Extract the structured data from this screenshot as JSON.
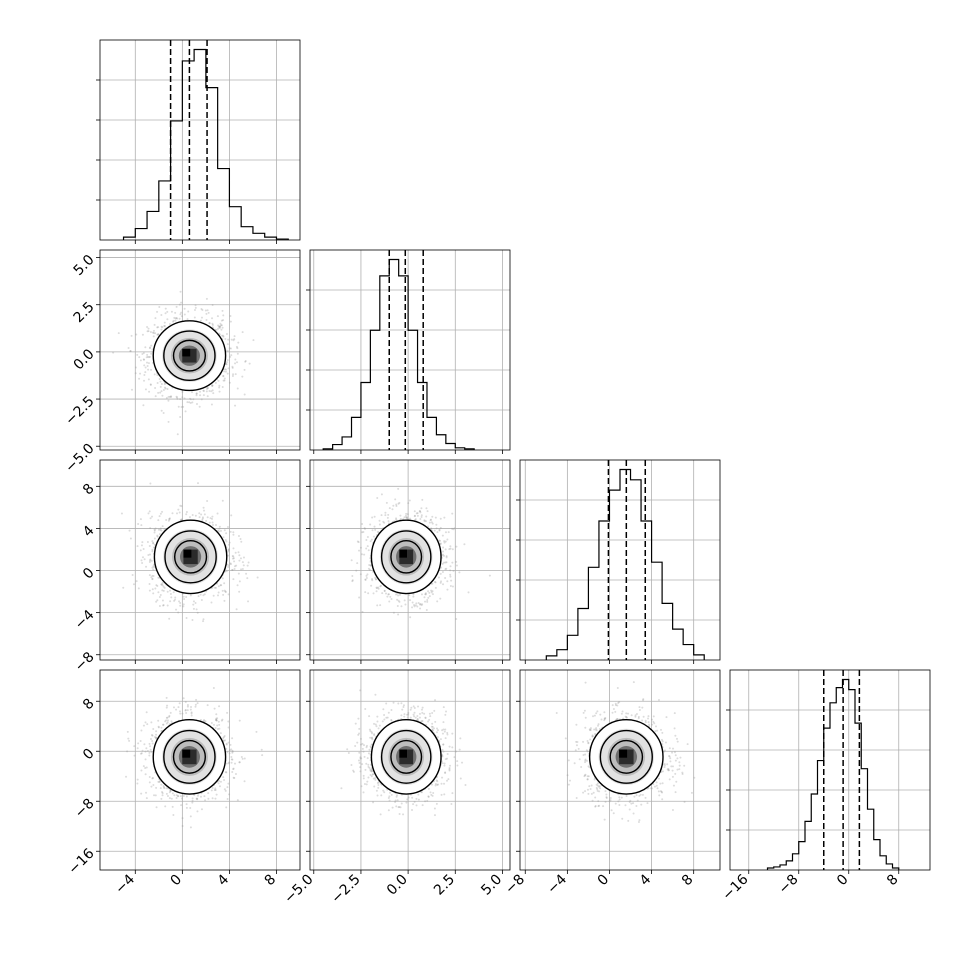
{
  "chart_data": {
    "type": "corner",
    "title": "",
    "dimensions": [
      {
        "label": "",
        "lim": [
          -7,
          10
        ],
        "ticks": [
          -4,
          0,
          4,
          8
        ],
        "tick_labels": [
          "−4",
          "0",
          "4",
          "8"
        ],
        "histogram": {
          "bin_edges": [
            -5,
            -4,
            -3,
            -2,
            -1,
            0,
            1,
            2,
            3,
            4,
            5,
            6,
            7,
            8,
            9
          ],
          "counts": [
            3,
            12,
            30,
            62,
            125,
            188,
            200,
            160,
            75,
            35,
            14,
            7,
            3,
            1
          ]
        },
        "quantiles": [
          -1.0,
          0.6,
          2.1
        ]
      },
      {
        "label": "",
        "lim": [
          -5.2,
          5.4
        ],
        "ticks": [
          -5.0,
          -2.5,
          0.0,
          2.5,
          5.0
        ],
        "tick_labels": [
          "−5.0",
          "−2.5",
          "0.0",
          "2.5",
          "5.0"
        ],
        "histogram": {
          "bin_edges": [
            -4.5,
            -4.0,
            -3.5,
            -3.0,
            -2.5,
            -2.0,
            -1.5,
            -1.0,
            -0.5,
            0.0,
            0.5,
            1.0,
            1.5,
            2.0,
            2.5,
            3.0,
            3.5
          ],
          "counts": [
            1,
            5,
            12,
            30,
            62,
            110,
            160,
            175,
            160,
            110,
            62,
            30,
            14,
            6,
            2,
            1
          ]
        },
        "quantiles": [
          -1.0,
          -0.15,
          0.8
        ]
      },
      {
        "label": "",
        "lim": [
          -8.5,
          10.5
        ],
        "ticks": [
          -8,
          -4,
          0,
          4,
          8
        ],
        "tick_labels": [
          "−8",
          "−4",
          "0",
          "4",
          "8"
        ],
        "histogram": {
          "bin_edges": [
            -6,
            -5,
            -4,
            -3,
            -2,
            -1,
            0,
            1,
            2,
            3,
            4,
            5,
            6,
            7,
            8,
            9
          ],
          "counts": [
            4,
            10,
            24,
            50,
            90,
            135,
            165,
            185,
            175,
            135,
            95,
            55,
            30,
            15,
            5
          ]
        },
        "quantiles": [
          -0.1,
          1.6,
          3.4
        ]
      },
      {
        "label": "",
        "lim": [
          -19,
          13
        ],
        "ticks": [
          -16,
          -8,
          0,
          8
        ],
        "tick_labels": [
          "−16",
          "−8",
          "0",
          "8"
        ],
        "histogram": {
          "bin_edges": [
            -13,
            -12,
            -11,
            -10,
            -9,
            -8,
            -7,
            -6,
            -5,
            -4,
            -3,
            -2,
            -1,
            0,
            1,
            2,
            3,
            4,
            5,
            6,
            7,
            8
          ],
          "counts": [
            2,
            3,
            5,
            9,
            16,
            28,
            48,
            75,
            108,
            140,
            165,
            180,
            188,
            178,
            145,
            100,
            60,
            30,
            14,
            6,
            2
          ]
        },
        "quantiles": [
          -4.0,
          -0.9,
          1.7
        ]
      }
    ],
    "pairs": [
      {
        "row": 1,
        "col": 0,
        "center": [
          0.6,
          -0.2
        ],
        "sd": [
          1.5,
          0.9
        ]
      },
      {
        "row": 2,
        "col": 0,
        "center": [
          0.7,
          1.3
        ],
        "sd": [
          1.5,
          1.7
        ]
      },
      {
        "row": 2,
        "col": 1,
        "center": [
          -0.1,
          1.3
        ],
        "sd": [
          0.9,
          1.7
        ]
      },
      {
        "row": 3,
        "col": 0,
        "center": [
          0.6,
          -0.9
        ],
        "sd": [
          1.5,
          2.9
        ]
      },
      {
        "row": 3,
        "col": 1,
        "center": [
          -0.1,
          -0.9
        ],
        "sd": [
          0.9,
          2.9
        ]
      },
      {
        "row": 3,
        "col": 2,
        "center": [
          1.6,
          -0.9
        ],
        "sd": [
          1.7,
          2.9
        ]
      }
    ],
    "grid": true,
    "colors": {
      "line": "#000000",
      "grid": "#b0b0b0",
      "scatter": "#9a9a9a",
      "background": "#ffffff"
    }
  }
}
